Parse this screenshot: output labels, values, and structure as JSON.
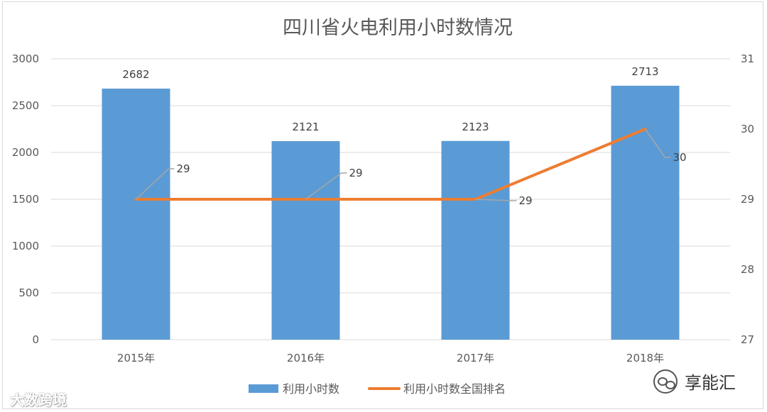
{
  "chart_data": {
    "type": "bar",
    "title": "四川省火电利用小时数情况",
    "categories": [
      "2015年",
      "2016年",
      "2017年",
      "2018年"
    ],
    "series": [
      {
        "name": "利用小时数",
        "type": "bar",
        "axis": "left",
        "values": [
          2682,
          2121,
          2123,
          2713
        ],
        "color": "#5b9bd5"
      },
      {
        "name": "利用小时数全国排名",
        "type": "line",
        "axis": "right",
        "values": [
          29,
          29,
          29,
          30
        ],
        "color": "#ed7d31"
      }
    ],
    "y_left": {
      "min": 0,
      "max": 3000,
      "ticks": [
        "0",
        "500",
        "1000",
        "1500",
        "2000",
        "2500",
        "3000"
      ]
    },
    "y_right": {
      "min": 27,
      "max": 31,
      "ticks": [
        "27",
        "28",
        "29",
        "30",
        "31"
      ]
    },
    "grid": true,
    "legend": "bottom"
  },
  "watermarks": {
    "left": "大数跨境",
    "right": "享能汇"
  }
}
